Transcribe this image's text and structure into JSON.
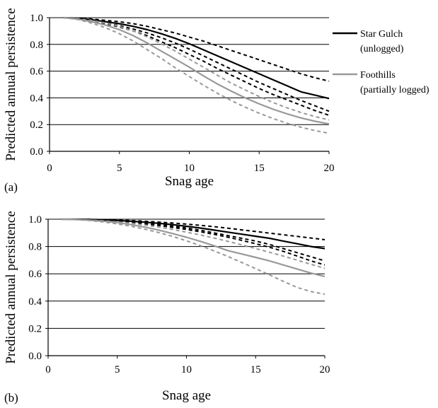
{
  "chart_data": [
    {
      "panel": "(a)",
      "type": "line",
      "xlabel": "Snag age",
      "ylabel": "Predicted annual persistence",
      "xlim": [
        0,
        20
      ],
      "ylim": [
        0.0,
        1.0
      ],
      "xticks": [
        "0",
        "5",
        "10",
        "15",
        "20"
      ],
      "yticks": [
        "0.0",
        "0.2",
        "0.4",
        "0.6",
        "0.8",
        "1.0"
      ],
      "grid": "horizontal",
      "legend": {
        "position": "right",
        "entries": [
          {
            "lines": [
              "Star Gulch",
              "(unlogged)"
            ],
            "color": "#000000"
          },
          {
            "lines": [
              "Foothills",
              "(partially logged)"
            ],
            "color": "#999999"
          }
        ]
      },
      "x": [
        1,
        2,
        3,
        4,
        5,
        6,
        7,
        8,
        9,
        10,
        11,
        12,
        13,
        14,
        15,
        16,
        17,
        18,
        19,
        20
      ],
      "series": [
        {
          "name": "Star Gulch",
          "style": "solid",
          "color": "#000000",
          "values": [
            1.0,
            0.995,
            0.985,
            0.97,
            0.955,
            0.935,
            0.91,
            0.88,
            0.845,
            0.805,
            0.76,
            0.715,
            0.67,
            0.625,
            0.58,
            0.535,
            0.49,
            0.445,
            0.42,
            0.395
          ]
        },
        {
          "style": "dashed",
          "color": "#000000",
          "values": [
            1.0,
            0.997,
            0.99,
            0.98,
            0.97,
            0.955,
            0.935,
            0.91,
            0.885,
            0.855,
            0.825,
            0.79,
            0.755,
            0.72,
            0.685,
            0.65,
            0.615,
            0.58,
            0.55,
            0.525
          ]
        },
        {
          "style": "dashed",
          "color": "#000000",
          "values": [
            1.0,
            0.993,
            0.98,
            0.96,
            0.94,
            0.915,
            0.885,
            0.85,
            0.81,
            0.765,
            0.715,
            0.665,
            0.615,
            0.565,
            0.515,
            0.47,
            0.425,
            0.38,
            0.34,
            0.3
          ]
        },
        {
          "style": "dashed",
          "color": "#000000",
          "values": [
            1.0,
            0.99,
            0.975,
            0.955,
            0.93,
            0.9,
            0.865,
            0.82,
            0.775,
            0.725,
            0.675,
            0.62,
            0.57,
            0.52,
            0.47,
            0.425,
            0.385,
            0.345,
            0.305,
            0.27
          ]
        },
        {
          "name": "Foothills",
          "style": "solid",
          "color": "#999999",
          "values": [
            1.0,
            0.99,
            0.97,
            0.945,
            0.91,
            0.865,
            0.81,
            0.75,
            0.69,
            0.63,
            0.565,
            0.505,
            0.45,
            0.4,
            0.355,
            0.315,
            0.28,
            0.25,
            0.225,
            0.205
          ]
        },
        {
          "style": "dashed",
          "color": "#999999",
          "values": [
            1.0,
            0.993,
            0.98,
            0.96,
            0.935,
            0.9,
            0.855,
            0.805,
            0.75,
            0.69,
            0.63,
            0.57,
            0.51,
            0.46,
            0.41,
            0.365,
            0.325,
            0.29,
            0.26,
            0.235
          ]
        },
        {
          "style": "dashed",
          "color": "#999999",
          "values": [
            1.0,
            0.987,
            0.96,
            0.925,
            0.88,
            0.825,
            0.76,
            0.695,
            0.625,
            0.56,
            0.495,
            0.435,
            0.38,
            0.33,
            0.285,
            0.245,
            0.21,
            0.18,
            0.155,
            0.135
          ]
        }
      ]
    },
    {
      "panel": "(b)",
      "type": "line",
      "xlabel": "Snag age",
      "ylabel": "Predicted annual persistence",
      "xlim": [
        0,
        20
      ],
      "ylim": [
        0.0,
        1.0
      ],
      "xticks": [
        "0",
        "5",
        "10",
        "15",
        "20"
      ],
      "yticks": [
        "0.0",
        "0.2",
        "0.4",
        "0.6",
        "0.8",
        "1.0"
      ],
      "grid": "horizontal",
      "x": [
        1,
        2,
        3,
        4,
        5,
        6,
        7,
        8,
        9,
        10,
        11,
        12,
        13,
        14,
        15,
        16,
        17,
        18,
        19,
        20
      ],
      "series": [
        {
          "name": "Star Gulch",
          "style": "solid",
          "color": "#000000",
          "values": [
            1.0,
            1.0,
            0.998,
            0.995,
            0.99,
            0.985,
            0.978,
            0.97,
            0.96,
            0.948,
            0.935,
            0.92,
            0.905,
            0.89,
            0.875,
            0.86,
            0.84,
            0.82,
            0.8,
            0.785
          ]
        },
        {
          "style": "dashed",
          "color": "#000000",
          "values": [
            1.0,
            1.0,
            0.999,
            0.997,
            0.994,
            0.99,
            0.985,
            0.979,
            0.972,
            0.964,
            0.955,
            0.945,
            0.934,
            0.922,
            0.91,
            0.898,
            0.886,
            0.874,
            0.862,
            0.85
          ]
        },
        {
          "style": "dashed",
          "color": "#000000",
          "values": [
            1.0,
            1.0,
            0.997,
            0.993,
            0.987,
            0.98,
            0.971,
            0.961,
            0.949,
            0.935,
            0.919,
            0.9,
            0.88,
            0.86,
            0.84,
            0.815,
            0.785,
            0.755,
            0.725,
            0.695
          ]
        },
        {
          "style": "dashed",
          "color": "#000000",
          "values": [
            1.0,
            1.0,
            0.996,
            0.99,
            0.984,
            0.976,
            0.966,
            0.954,
            0.94,
            0.925,
            0.908,
            0.889,
            0.868,
            0.845,
            0.82,
            0.795,
            0.765,
            0.73,
            0.695,
            0.665
          ]
        },
        {
          "name": "Foothills",
          "style": "solid",
          "color": "#999999",
          "values": [
            1.0,
            0.998,
            0.993,
            0.985,
            0.975,
            0.96,
            0.942,
            0.92,
            0.895,
            0.868,
            0.838,
            0.805,
            0.77,
            0.745,
            0.72,
            0.695,
            0.665,
            0.635,
            0.605,
            0.58
          ]
        },
        {
          "style": "dashed",
          "color": "#999999",
          "values": [
            1.0,
            0.998,
            0.994,
            0.988,
            0.98,
            0.97,
            0.957,
            0.942,
            0.925,
            0.905,
            0.885,
            0.862,
            0.838,
            0.812,
            0.785,
            0.758,
            0.73,
            0.7,
            0.67,
            0.64
          ]
        },
        {
          "style": "dashed",
          "color": "#999999",
          "values": [
            1.0,
            0.997,
            0.99,
            0.98,
            0.966,
            0.948,
            0.927,
            0.902,
            0.874,
            0.842,
            0.806,
            0.768,
            0.727,
            0.683,
            0.638,
            0.592,
            0.545,
            0.5,
            0.47,
            0.45
          ]
        }
      ]
    }
  ]
}
